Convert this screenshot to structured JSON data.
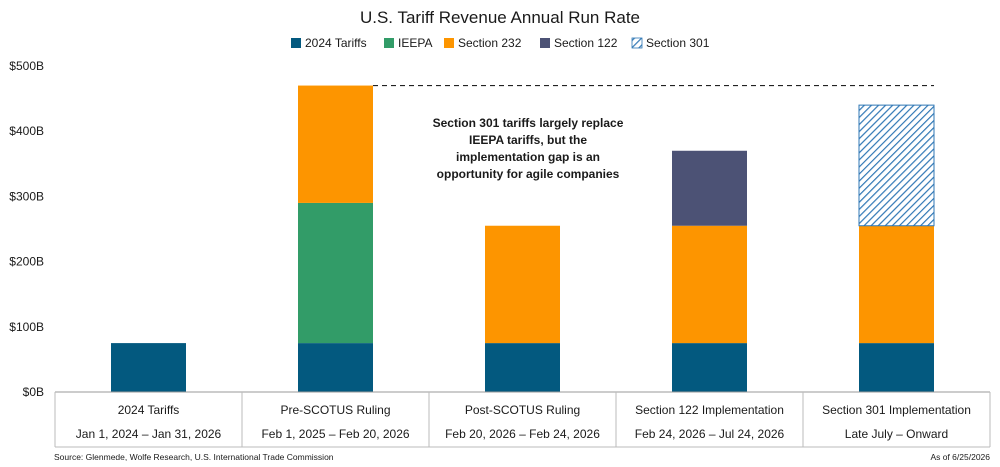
{
  "chart_data": {
    "type": "bar",
    "stacked": true,
    "title": "U.S. Tariff Revenue Annual Run Rate",
    "categories": [
      "2024 Tariffs",
      "Pre-SCOTUS Ruling",
      "Post-SCOTUS Ruling",
      "Section 122 Implementation",
      "Section 301 Implementation"
    ],
    "category_dates": [
      "Jan 1, 2024 – Jan 31, 2026",
      "Feb 1, 2025 – Feb 20, 2026",
      "Feb 20, 2026 – Feb 24, 2026",
      "Feb 24, 2026 – Jul 24, 2026",
      "Late July – Onward"
    ],
    "series": [
      {
        "name": "2024 Tariffs",
        "color": "#03597f",
        "pattern": "solid",
        "values": [
          75,
          75,
          75,
          75,
          75
        ]
      },
      {
        "name": "IEEPA",
        "color": "#329c68",
        "pattern": "solid",
        "values": [
          0,
          215,
          0,
          0,
          0
        ]
      },
      {
        "name": "Section 232",
        "color": "#fd9500",
        "pattern": "solid",
        "values": [
          0,
          180,
          180,
          180,
          180
        ]
      },
      {
        "name": "Section 122",
        "color": "#4c5275",
        "pattern": "solid",
        "values": [
          0,
          0,
          0,
          115,
          0
        ]
      },
      {
        "name": "Section 301",
        "color": "#2f77b5",
        "pattern": "hatch",
        "values": [
          0,
          0,
          0,
          0,
          185
        ]
      }
    ],
    "yticks": [
      "$0B",
      "$100B",
      "$200B",
      "$300B",
      "$400B",
      "$500B"
    ],
    "ylim": [
      0,
      500
    ],
    "reference_line": {
      "value": 470,
      "style": "dashed",
      "from_category": 1
    },
    "annotation": [
      "Section 301 tariffs largely replace",
      "IEEPA tariffs, but the",
      "implementation gap is an",
      "opportunity for agile companies"
    ],
    "legend_position": "top",
    "grid": false,
    "source": "Source: Glenmede, Wolfe Research, U.S. International Trade Commission",
    "as_of": "As of 6/25/2026"
  }
}
